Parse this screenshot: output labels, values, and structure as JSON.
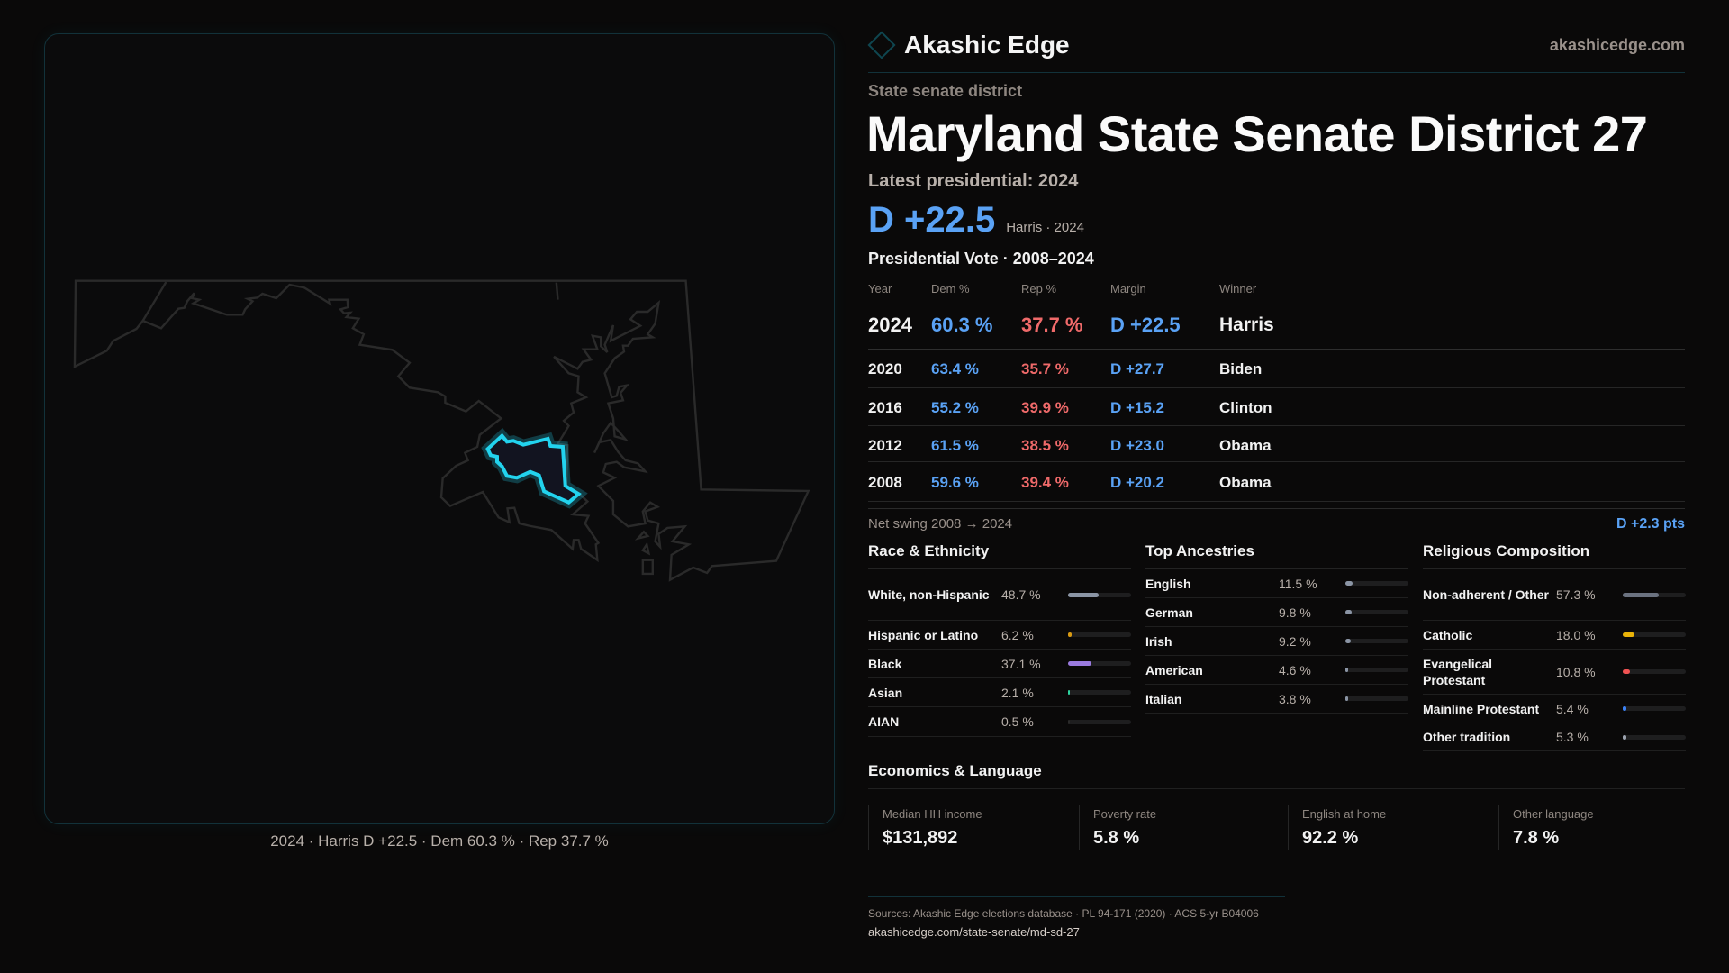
{
  "map": {
    "caption": "2024 · Harris D +22.5 · Dem 60.3 % · Rep 37.7 %",
    "highlight_color": "#22d3ee"
  },
  "header": {
    "brand": "Akashic Edge",
    "site": "akashicedge.com"
  },
  "kicker": "State senate district",
  "title": "Maryland State Senate District 27",
  "latest": "Latest presidential: 2024",
  "headline": {
    "margin": "D +22.5",
    "sub": "Harris · 2024"
  },
  "pres": {
    "title": "Presidential Vote · 2008–2024",
    "headers": [
      "Year",
      "Dem %",
      "Rep %",
      "Margin",
      "Winner"
    ],
    "rows": [
      {
        "year": "2024",
        "dem": "60.3 %",
        "rep": "37.7 %",
        "margin": "D +22.5",
        "winner": "Harris"
      },
      {
        "year": "2020",
        "dem": "63.4 %",
        "rep": "35.7 %",
        "margin": "D +27.7",
        "winner": "Biden"
      },
      {
        "year": "2016",
        "dem": "55.2 %",
        "rep": "39.9 %",
        "margin": "D +15.2",
        "winner": "Clinton"
      },
      {
        "year": "2012",
        "dem": "61.5 %",
        "rep": "38.5 %",
        "margin": "D +23.0",
        "winner": "Obama"
      },
      {
        "year": "2008",
        "dem": "59.6 %",
        "rep": "39.4 %",
        "margin": "D +20.2",
        "winner": "Obama"
      }
    ]
  },
  "swing": {
    "label": "Net swing 2008 → 2024",
    "value": "D +2.3 pts"
  },
  "sections": [
    {
      "title": "Race & Ethnicity",
      "rows": [
        {
          "label": "White, non-Hispanic",
          "value": "48.7 %",
          "pct": 48.7,
          "color": "#8b95a5"
        },
        {
          "label": "Hispanic or Latino",
          "value": "6.2 %",
          "pct": 6.2,
          "color": "#d99a12"
        },
        {
          "label": "Black",
          "value": "37.1 %",
          "pct": 37.1,
          "color": "#9b7be0"
        },
        {
          "label": "Asian",
          "value": "2.1 %",
          "pct": 2.1,
          "color": "#2dd4a0"
        },
        {
          "label": "AIAN",
          "value": "0.5 %",
          "pct": 0.5,
          "color": "#2a2a2a"
        }
      ]
    },
    {
      "title": "Top Ancestries",
      "rows": [
        {
          "label": "English",
          "value": "11.5 %",
          "pct": 11.5,
          "color": "#8b95a5"
        },
        {
          "label": "German",
          "value": "9.8 %",
          "pct": 9.8,
          "color": "#8b95a5"
        },
        {
          "label": "Irish",
          "value": "9.2 %",
          "pct": 9.2,
          "color": "#8b95a5"
        },
        {
          "label": "American",
          "value": "4.6 %",
          "pct": 4.6,
          "color": "#8b95a5"
        },
        {
          "label": "Italian",
          "value": "3.8 %",
          "pct": 3.8,
          "color": "#8b95a5"
        }
      ]
    },
    {
      "title": "Religious Composition",
      "rows": [
        {
          "label": "Non-adherent / Other",
          "value": "57.3 %",
          "pct": 57.3,
          "color": "#6b7280"
        },
        {
          "label": "Catholic",
          "value": "18.0 %",
          "pct": 18.0,
          "color": "#eab308"
        },
        {
          "label": "Evangelical Protestant",
          "value": "10.8 %",
          "pct": 10.8,
          "color": "#f05252"
        },
        {
          "label": "Mainline Protestant",
          "value": "5.4 %",
          "pct": 5.4,
          "color": "#3b82f6"
        },
        {
          "label": "Other tradition",
          "value": "5.3 %",
          "pct": 5.3,
          "color": "#9ca3af"
        }
      ]
    }
  ],
  "econ": {
    "title": "Economics & Language",
    "cards": [
      {
        "label": "Median HH income",
        "value": "$131,892"
      },
      {
        "label": "Poverty rate",
        "value": "5.8 %"
      },
      {
        "label": "English at home",
        "value": "92.2 %"
      },
      {
        "label": "Other language",
        "value": "7.8 %"
      }
    ]
  },
  "footer": {
    "sources": "Sources: Akashic Edge elections database · PL 94-171 (2020) · ACS 5-yr B04006",
    "url": "akashicedge.com/state-senate/md-sd-27"
  }
}
